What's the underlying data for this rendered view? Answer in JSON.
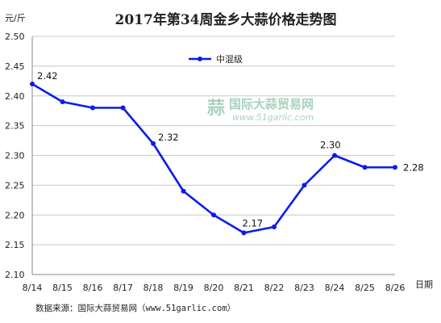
{
  "chart_data": {
    "type": "line",
    "title": "2017年第34周金乡大蒜价格走势图",
    "ylabel": "元/斤",
    "xlabel": "日期",
    "categories": [
      "8/14",
      "8/15",
      "8/16",
      "8/17",
      "8/18",
      "8/19",
      "8/20",
      "8/21",
      "8/22",
      "8/23",
      "8/24",
      "8/25",
      "8/26"
    ],
    "series": [
      {
        "name": "中混级",
        "values": [
          2.42,
          2.39,
          2.38,
          2.38,
          2.32,
          2.24,
          2.2,
          2.17,
          2.18,
          2.25,
          2.3,
          2.28,
          2.28
        ],
        "color": "#0a1ee6"
      }
    ],
    "data_labels": [
      {
        "index": 0,
        "text": "2.42"
      },
      {
        "index": 4,
        "text": "2.32"
      },
      {
        "index": 7,
        "text": "2.17"
      },
      {
        "index": 10,
        "text": "2.30"
      },
      {
        "index": 12,
        "text": "2.28"
      }
    ],
    "ylim": [
      2.1,
      2.5
    ],
    "yticks": [
      "2.10",
      "2.15",
      "2.20",
      "2.25",
      "2.30",
      "2.35",
      "2.40",
      "2.45",
      "2.50"
    ],
    "grid": true,
    "legend_position": "top-center"
  },
  "watermark": {
    "text": "国际大蒜贸易网",
    "url": "www.51garlic.com"
  },
  "source_note": "数据来源：国际大蒜贸易网（www.51garlic.com）"
}
